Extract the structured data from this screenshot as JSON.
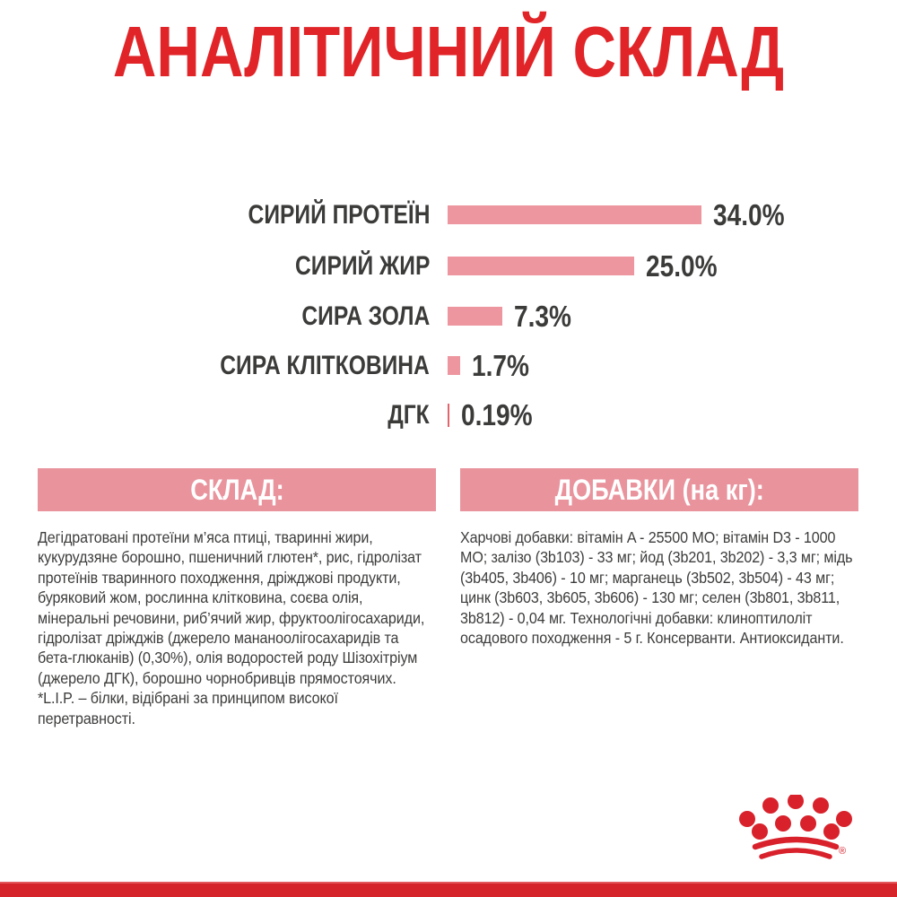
{
  "page": {
    "title": "АНАЛІТИЧНИЙ СКЛАД",
    "language": "uk",
    "colors": {
      "brand_red": "#e02428",
      "bar_pink": "#ee96a0",
      "header_pink": "#e9939d",
      "dgk_marker_red": "#e4646c",
      "text_dark": "#3c3c3b",
      "footer_red": "#d6242b"
    }
  },
  "chart_data": {
    "type": "bar",
    "orientation": "horizontal",
    "title": "АНАЛІТИЧНИЙ СКЛАД",
    "unit": "%",
    "categories": [
      "СИРИЙ ПРОТЕЇН",
      "СИРИЙ ЖИР",
      "СИРА ЗОЛА",
      "СИРА КЛІТКОВИНА",
      "ДГК"
    ],
    "values": [
      34.0,
      25.0,
      7.3,
      1.7,
      0.19
    ],
    "value_labels": [
      "34.0%",
      "25.0%",
      "7.3%",
      "1.7%",
      "0.19%"
    ],
    "xlim": [
      0,
      40
    ],
    "grid": false,
    "legend": false,
    "bar_color": "#ee96a0"
  },
  "sections": {
    "composition": {
      "header": "СКЛАД:",
      "body": "Дегідратовані протеїни м’яса птиці, тваринні жири, кукурудзяне борошно, пшеничний глютен*, рис, гідролізат протеїнів тваринного походження, дріжджові продукти, буряковий жом, рослинна клітковина, соєва олія, мінеральні речовини, риб’ячий жир, фруктоолігосахариди, гідролізат дріжджів (джерело мананоолігосахаридів та бета-глюканів) (0,30%), олія водоростей роду Шізохітріум (джерело ДГК), борошно чорнобривців прямостоячих.",
      "footnote": "*L.I.P. – білки, відібрані за принципом високої перетравності."
    },
    "additives": {
      "header": "ДОБАВКИ (на кг):",
      "body": "Харчові добавки: вітамін A - 25500 МО; вітамін D3 - 1000 МО; залізо (3b103) - 33 мг; йод (3b201, 3b202) - 3,3 мг; мідь (3b405, 3b406) - 10 мг; марганець (3b502, 3b504) - 43 мг; цинк (3b603, 3b605, 3b606) - 130 мг; селен (3b801, 3b811, 3b812) - 0,04 мг. Технологічні добавки: клиноптилоліт осадового походження - 5 г. Консерванти. Антиоксиданти."
    }
  },
  "footer": {
    "logo": "royal-canin-crown",
    "registered_mark": "®"
  }
}
